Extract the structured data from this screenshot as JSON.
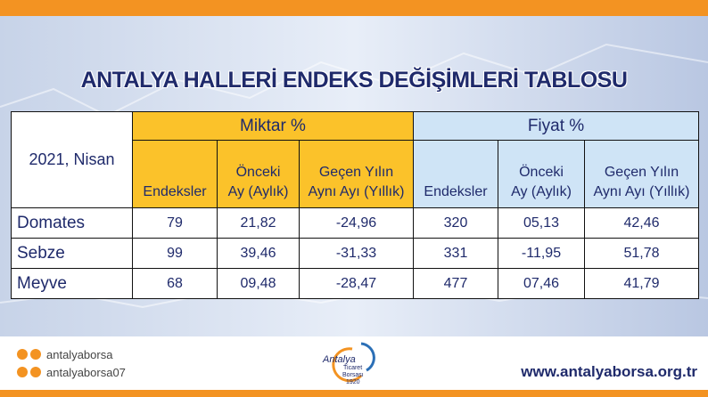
{
  "header": {
    "title": "ANTALYA HALLERİ ENDEKS DEĞİŞİMLERİ TABLOSU"
  },
  "table": {
    "corner": "2021, Nisan",
    "groups": [
      "Miktar %",
      "Fiyat %"
    ],
    "columns": [
      [
        "Endeksler"
      ],
      [
        "Önceki",
        "Ay (Aylık)"
      ],
      [
        "Geçen Yılın",
        "Aynı Ayı (Yıllık)"
      ],
      [
        "Endeksler"
      ],
      [
        "Önceki",
        "Ay (Aylık)"
      ],
      [
        "Geçen Yılın",
        "Aynı Ayı (Yıllık)"
      ]
    ],
    "rows": [
      [
        "Domates",
        "79",
        "21,82",
        "-24,96",
        "320",
        "05,13",
        "42,46"
      ],
      [
        "Sebze",
        "99",
        "39,46",
        "-31,33",
        "331",
        "-11,95",
        "51,78"
      ],
      [
        "Meyve",
        "68",
        "09,48",
        "-28,47",
        "477",
        "07,46",
        "41,79"
      ]
    ]
  },
  "footer": {
    "social": [
      "antalyaborsa",
      "antalyaborsa07"
    ],
    "logo": [
      "Antalya",
      "Ticaret",
      "Borsası",
      "1920"
    ],
    "url": "www.antalyaborsa.org.tr"
  }
}
